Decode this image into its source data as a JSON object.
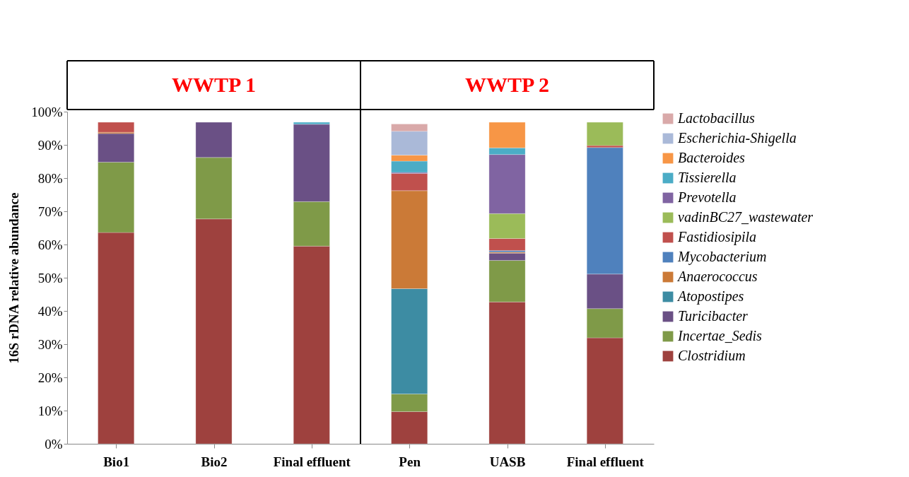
{
  "chart_data": {
    "type": "bar",
    "stacked": true,
    "ylabel": "16S rDNA relative abundance",
    "annotations": [
      "WWTP 1",
      "WWTP 2"
    ],
    "categories": [
      "Bio1",
      "Bio2",
      "Final effluent",
      "Pen",
      "UASB",
      "Final effluent"
    ],
    "ylim": [
      0,
      100
    ],
    "yticks": [
      {
        "value": 0,
        "label": "0%"
      },
      {
        "value": 10,
        "label": "10%"
      },
      {
        "value": 20,
        "label": "20%"
      },
      {
        "value": 30,
        "label": "30%"
      },
      {
        "value": 40,
        "label": "40%"
      },
      {
        "value": 50,
        "label": "50%"
      },
      {
        "value": 60,
        "label": "60%"
      },
      {
        "value": 70,
        "label": "70%"
      },
      {
        "value": 80,
        "label": "80%"
      },
      {
        "value": 90,
        "label": "90%"
      },
      {
        "value": 100,
        "label": "100%"
      }
    ],
    "grid": false,
    "legend": "right",
    "series": [
      {
        "name": "Clostridium",
        "color": "#9e413e",
        "values": [
          63.6,
          67.7,
          59.5,
          9.7,
          42.7,
          31.9
        ]
      },
      {
        "name": "Incertae_Sedis",
        "color": "#7f9a48",
        "values": [
          21.2,
          18.5,
          13.4,
          5.3,
          12.5,
          8.8
        ]
      },
      {
        "name": "Turicibacter",
        "color": "#6a5085",
        "values": [
          8.6,
          10.6,
          23.3,
          null,
          2.2,
          10.4
        ]
      },
      {
        "name": "Atopostipes",
        "color": "#3d8ca3",
        "values": [
          null,
          null,
          null,
          31.7,
          null,
          null
        ]
      },
      {
        "name": "Anaerococcus",
        "color": "#cb7a37",
        "values": [
          0.4,
          null,
          null,
          29.5,
          0.3,
          null
        ]
      },
      {
        "name": "Mycobacterium",
        "color": "#4f81bd",
        "values": [
          null,
          null,
          null,
          null,
          0.5,
          38.1
        ]
      },
      {
        "name": "Fastidiosipila",
        "color": "#c0504d",
        "values": [
          3.0,
          null,
          null,
          5.2,
          3.6,
          0.6
        ]
      },
      {
        "name": "vadinBC27_wastewater",
        "color": "#9bbb59",
        "values": [
          null,
          null,
          null,
          null,
          7.5,
          7.0
        ]
      },
      {
        "name": "Prevotella",
        "color": "#8064a2",
        "values": [
          null,
          null,
          null,
          0.3,
          17.8,
          null
        ]
      },
      {
        "name": "Tissierella",
        "color": "#4bacc6",
        "values": [
          null,
          null,
          0.6,
          3.4,
          2.0,
          null
        ]
      },
      {
        "name": "Bacteroides",
        "color": "#f79646",
        "values": [
          null,
          null,
          null,
          1.8,
          7.7,
          null
        ]
      },
      {
        "name": "Escherichia-Shigella",
        "color": "#aab9d8",
        "values": [
          null,
          null,
          null,
          7.2,
          null,
          null
        ]
      },
      {
        "name": "Lactobacillus",
        "color": "#d9a9a9",
        "values": [
          null,
          null,
          null,
          2.2,
          null,
          null
        ]
      }
    ]
  }
}
